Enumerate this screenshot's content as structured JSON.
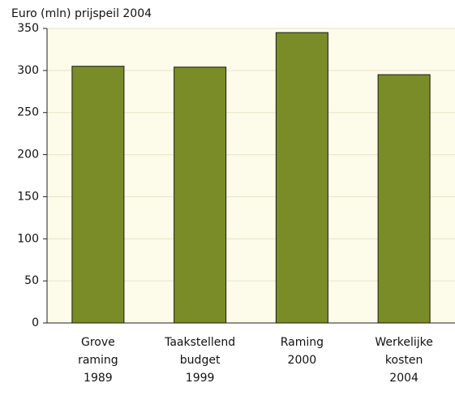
{
  "chart_data": {
    "type": "bar",
    "title": "Euro (mln) prijspeil 2004",
    "categories": [
      [
        "Grove",
        "raming",
        "1989"
      ],
      [
        "Taakstellend",
        "budget",
        "1999"
      ],
      [
        "Raming",
        "2000"
      ],
      [
        "Werkelijke",
        "kosten",
        "2004"
      ]
    ],
    "values": [
      305,
      304,
      345,
      295
    ],
    "color": "#7a8c28",
    "ylim": [
      0,
      350
    ],
    "yticks": [
      0,
      50,
      100,
      150,
      200,
      250,
      300,
      350
    ],
    "grid": true
  }
}
